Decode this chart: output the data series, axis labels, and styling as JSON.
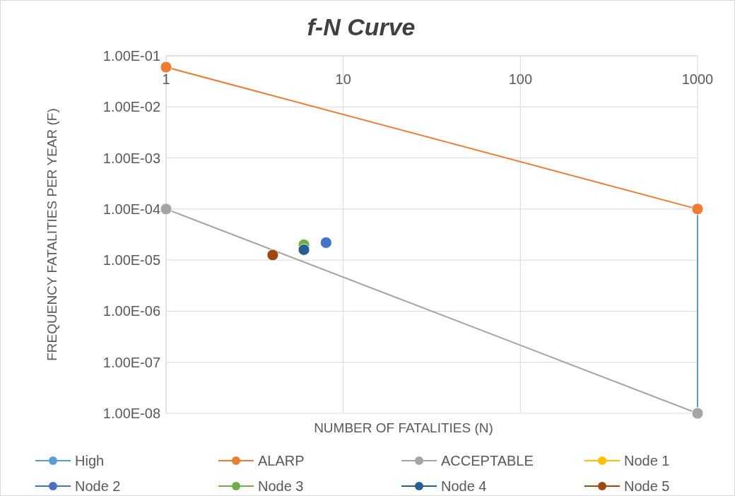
{
  "chart_data": {
    "type": "line",
    "title": "f-N Curve",
    "xlabel": "NUMBER OF FATALITIES  (N)",
    "ylabel": "FREQUENCY FATALITIES PER YEAR (F)",
    "log": "xy",
    "grid": true,
    "legend": "bottom",
    "marker": "circle",
    "line_style": "solid",
    "xlim": [
      1,
      1000
    ],
    "xticks": [
      1,
      10,
      100,
      1000
    ],
    "ylim": [
      1e-08,
      0.1
    ],
    "yticks": [
      {
        "value": 1e-08,
        "label": "1.00E-08"
      },
      {
        "value": 1e-07,
        "label": "1.00E-07"
      },
      {
        "value": 1e-06,
        "label": "1.00E-06"
      },
      {
        "value": 1e-05,
        "label": "1.00E-05"
      },
      {
        "value": 0.0001,
        "label": "1.00E-04"
      },
      {
        "value": 0.001,
        "label": "1.00E-03"
      },
      {
        "value": 0.01,
        "label": "1.00E-02"
      },
      {
        "value": 0.1,
        "label": "1.00E-01"
      }
    ],
    "series": [
      {
        "name": "High",
        "color": "#5b9bd5",
        "x": [
          1000,
          1000
        ],
        "values": [
          0.0001,
          1e-08
        ]
      },
      {
        "name": "ALARP",
        "color": "#ed7d31",
        "x": [
          1,
          1000
        ],
        "values": [
          0.06,
          0.0001
        ]
      },
      {
        "name": "ACCEPTABLE",
        "color": "#a5a5a5",
        "x": [
          1,
          1000
        ],
        "values": [
          0.0001,
          1e-08
        ]
      },
      {
        "name": "Node 1",
        "color": "#ffc000",
        "type": "scatter"
      },
      {
        "name": "Node 2",
        "color": "#4472c4",
        "type": "scatter",
        "x": [
          8
        ],
        "values": [
          2.2e-05
        ]
      },
      {
        "name": "Node 3",
        "color": "#70ad47",
        "type": "scatter",
        "x": [
          6
        ],
        "values": [
          2e-05
        ]
      },
      {
        "name": "Node 4",
        "color": "#255e91",
        "type": "scatter",
        "x": [
          6
        ],
        "values": [
          1.6e-05
        ]
      },
      {
        "name": "Node 5",
        "color": "#9e480e",
        "type": "scatter",
        "x": [
          4
        ],
        "values": [
          1.26e-05
        ]
      }
    ]
  }
}
